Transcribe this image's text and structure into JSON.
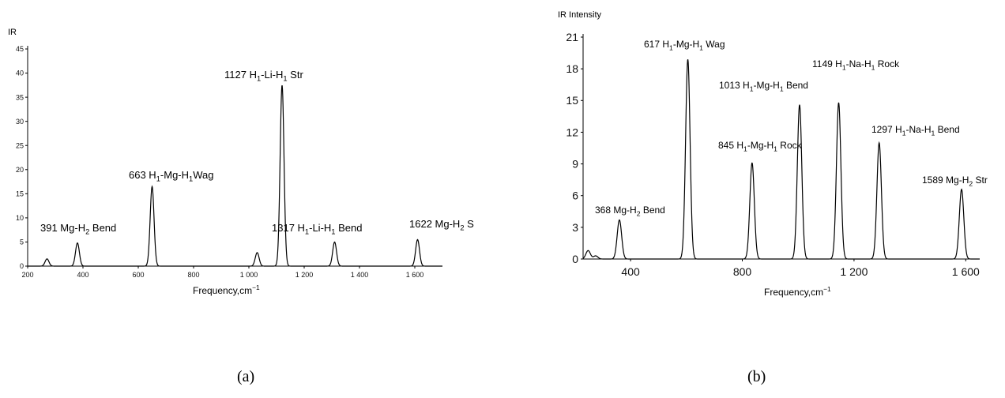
{
  "charts": [
    {
      "type": "line",
      "ylabel": "IR",
      "xlabel": "Frequency,cm",
      "xlabel_sup": "−1",
      "xlim": [
        200,
        1700
      ],
      "ylim": [
        0,
        45
      ],
      "xticks": [
        200,
        400,
        600,
        800,
        1000,
        1200,
        1400,
        1600
      ],
      "xtick_labels": [
        "200",
        "400",
        "600",
        "800",
        "1 000",
        "1 200",
        "1 400",
        "1 600"
      ],
      "yticks": [
        0,
        5,
        10,
        15,
        20,
        25,
        30,
        35,
        40,
        45
      ],
      "ytick_labels": [
        "0",
        "5",
        "10",
        "15",
        "20",
        "25",
        "30",
        "35",
        "40",
        "45"
      ],
      "peaks": [
        {
          "x": 270,
          "y": 1.5
        },
        {
          "x": 380,
          "y": 4.8
        },
        {
          "x": 650,
          "y": 16.5
        },
        {
          "x": 1030,
          "y": 2.8
        },
        {
          "x": 1120,
          "y": 37.5
        },
        {
          "x": 1310,
          "y": 5.0
        },
        {
          "x": 1610,
          "y": 5.5
        }
      ],
      "annotations": [
        {
          "parts": [
            [
              "391 Mg-H",
              ""
            ],
            [
              "2",
              "sub"
            ],
            [
              " Bend",
              ""
            ]
          ]
        },
        {
          "parts": [
            [
              "663 H",
              ""
            ],
            [
              "1",
              "sub"
            ],
            [
              "-Mg-H",
              ""
            ],
            [
              "1",
              "sub"
            ],
            [
              "Wag",
              ""
            ]
          ]
        },
        {
          "parts": [
            [
              "1127 H",
              ""
            ],
            [
              "1",
              "sub"
            ],
            [
              "-Li-H",
              ""
            ],
            [
              "1",
              "sub"
            ],
            [
              " Str",
              ""
            ]
          ]
        },
        {
          "parts": [
            [
              "1317 H",
              ""
            ],
            [
              "1",
              "sub"
            ],
            [
              "-Li-H",
              ""
            ],
            [
              "1",
              "sub"
            ],
            [
              " Bend",
              ""
            ]
          ]
        },
        {
          "parts": [
            [
              "1622 Mg-H",
              ""
            ],
            [
              "2",
              "sub"
            ],
            [
              " Str",
              ""
            ]
          ]
        }
      ],
      "caption": "(a)"
    },
    {
      "type": "line",
      "ylabel": "IR Intensity",
      "xlabel": "Frequency,cm",
      "xlabel_sup": "−1",
      "xlim": [
        230,
        1650
      ],
      "ylim": [
        0,
        21
      ],
      "xticks": [
        400,
        800,
        1200,
        1600
      ],
      "xtick_labels": [
        "400",
        "800",
        "1 200",
        "1 600"
      ],
      "yticks": [
        0,
        3,
        6,
        9,
        12,
        15,
        18,
        21
      ],
      "ytick_labels": [
        "0",
        "3",
        "6",
        "9",
        "12",
        "15",
        "18",
        "21"
      ],
      "peaks": [
        {
          "x": 248,
          "y": 0.8
        },
        {
          "x": 275,
          "y": 0.3
        },
        {
          "x": 360,
          "y": 3.7
        },
        {
          "x": 605,
          "y": 18.9
        },
        {
          "x": 835,
          "y": 9.1
        },
        {
          "x": 1005,
          "y": 14.6
        },
        {
          "x": 1145,
          "y": 14.8
        },
        {
          "x": 1290,
          "y": 11.0
        },
        {
          "x": 1585,
          "y": 6.6
        }
      ],
      "annotations": [
        {
          "parts": [
            [
              "617 H",
              ""
            ],
            [
              "1",
              "sub"
            ],
            [
              "-Mg-H",
              ""
            ],
            [
              "1",
              "sub"
            ],
            [
              " Wag",
              ""
            ]
          ]
        },
        {
          "parts": [
            [
              "1149 H",
              ""
            ],
            [
              "1",
              "sub"
            ],
            [
              "-Na-H",
              ""
            ],
            [
              "1",
              "sub"
            ],
            [
              " Rock",
              ""
            ]
          ]
        },
        {
          "parts": [
            [
              "1013 H",
              ""
            ],
            [
              "1",
              "sub"
            ],
            [
              "-Mg-H",
              ""
            ],
            [
              "1",
              "sub"
            ],
            [
              " Bend",
              ""
            ]
          ]
        },
        {
          "parts": [
            [
              "1297 H",
              ""
            ],
            [
              "1",
              "sub"
            ],
            [
              "-Na-H",
              ""
            ],
            [
              "1",
              "sub"
            ],
            [
              " Bend",
              ""
            ]
          ]
        },
        {
          "parts": [
            [
              "845 H",
              ""
            ],
            [
              "1",
              "sub"
            ],
            [
              "-Mg-H",
              ""
            ],
            [
              "1",
              "sub"
            ],
            [
              " Rock",
              ""
            ]
          ]
        },
        {
          "parts": [
            [
              "1589 Mg-H",
              ""
            ],
            [
              "2",
              "sub"
            ],
            [
              " Str",
              ""
            ]
          ]
        },
        {
          "parts": [
            [
              "368 Mg-H",
              ""
            ],
            [
              "2",
              "sub"
            ],
            [
              " Bend",
              ""
            ]
          ]
        }
      ],
      "caption": "(b)"
    }
  ]
}
